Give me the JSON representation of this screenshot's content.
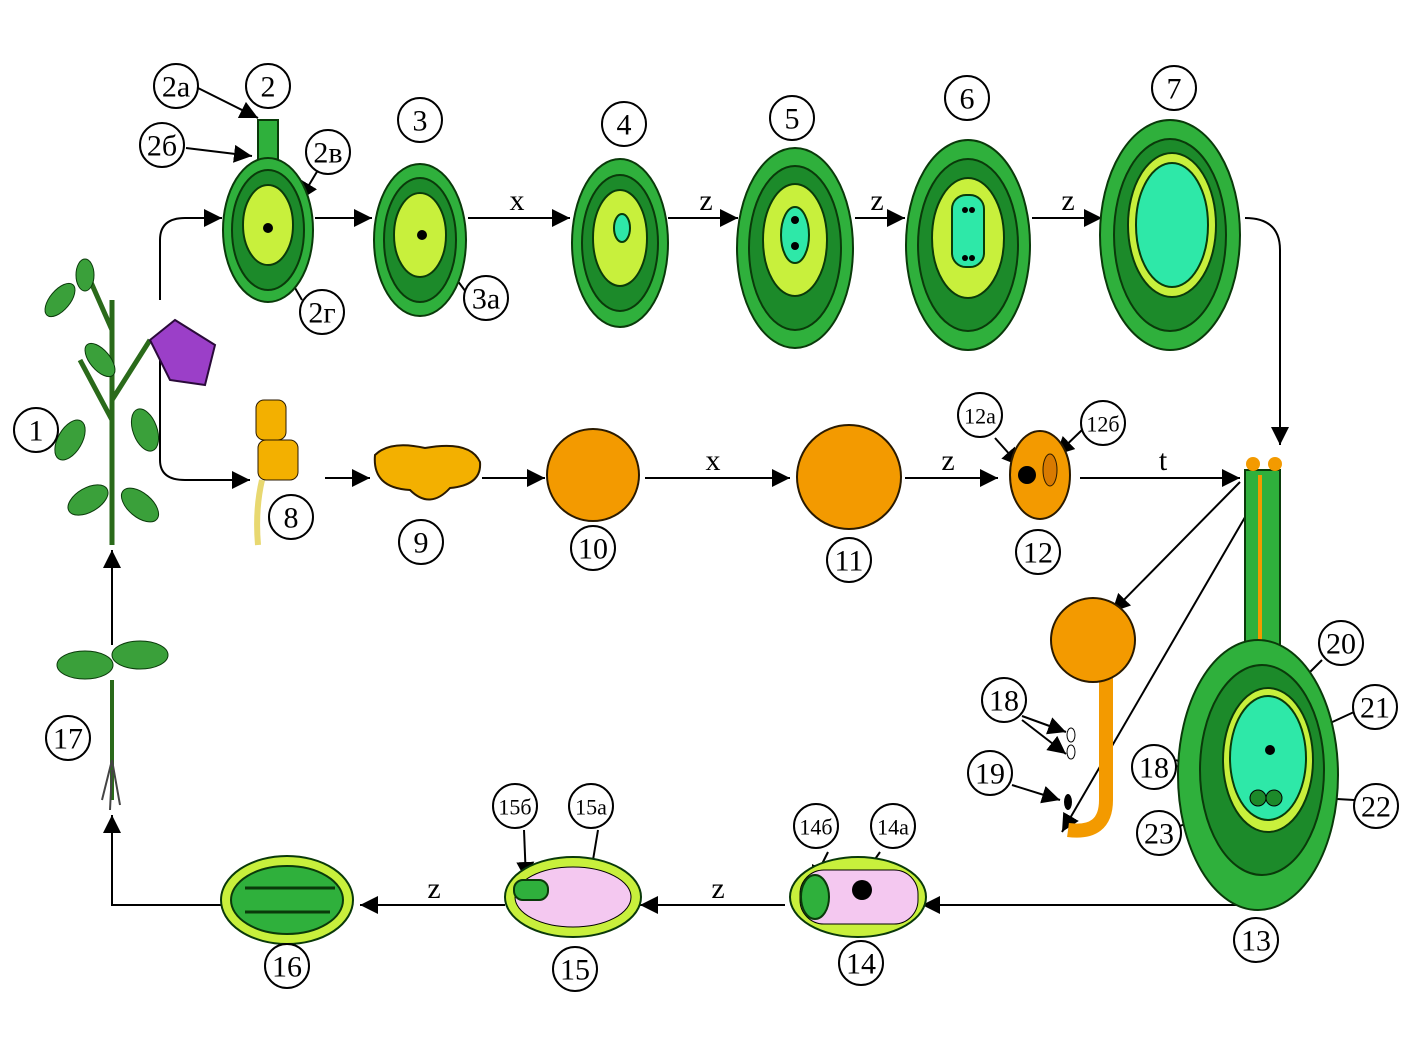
{
  "labels": [
    "1",
    "2",
    "2а",
    "2б",
    "2в",
    "2г",
    "3",
    "3а",
    "4",
    "5",
    "6",
    "7",
    "8",
    "9",
    "10",
    "11",
    "12",
    "12а",
    "12б",
    "13",
    "14",
    "14а",
    "14б",
    "15",
    "15а",
    "15б",
    "16",
    "17",
    "18",
    "18",
    "19",
    "20",
    "21",
    "22",
    "23"
  ],
  "arrow_labels": [
    "x",
    "z",
    "z",
    "z",
    "x",
    "z",
    "t",
    "z",
    "z"
  ]
}
